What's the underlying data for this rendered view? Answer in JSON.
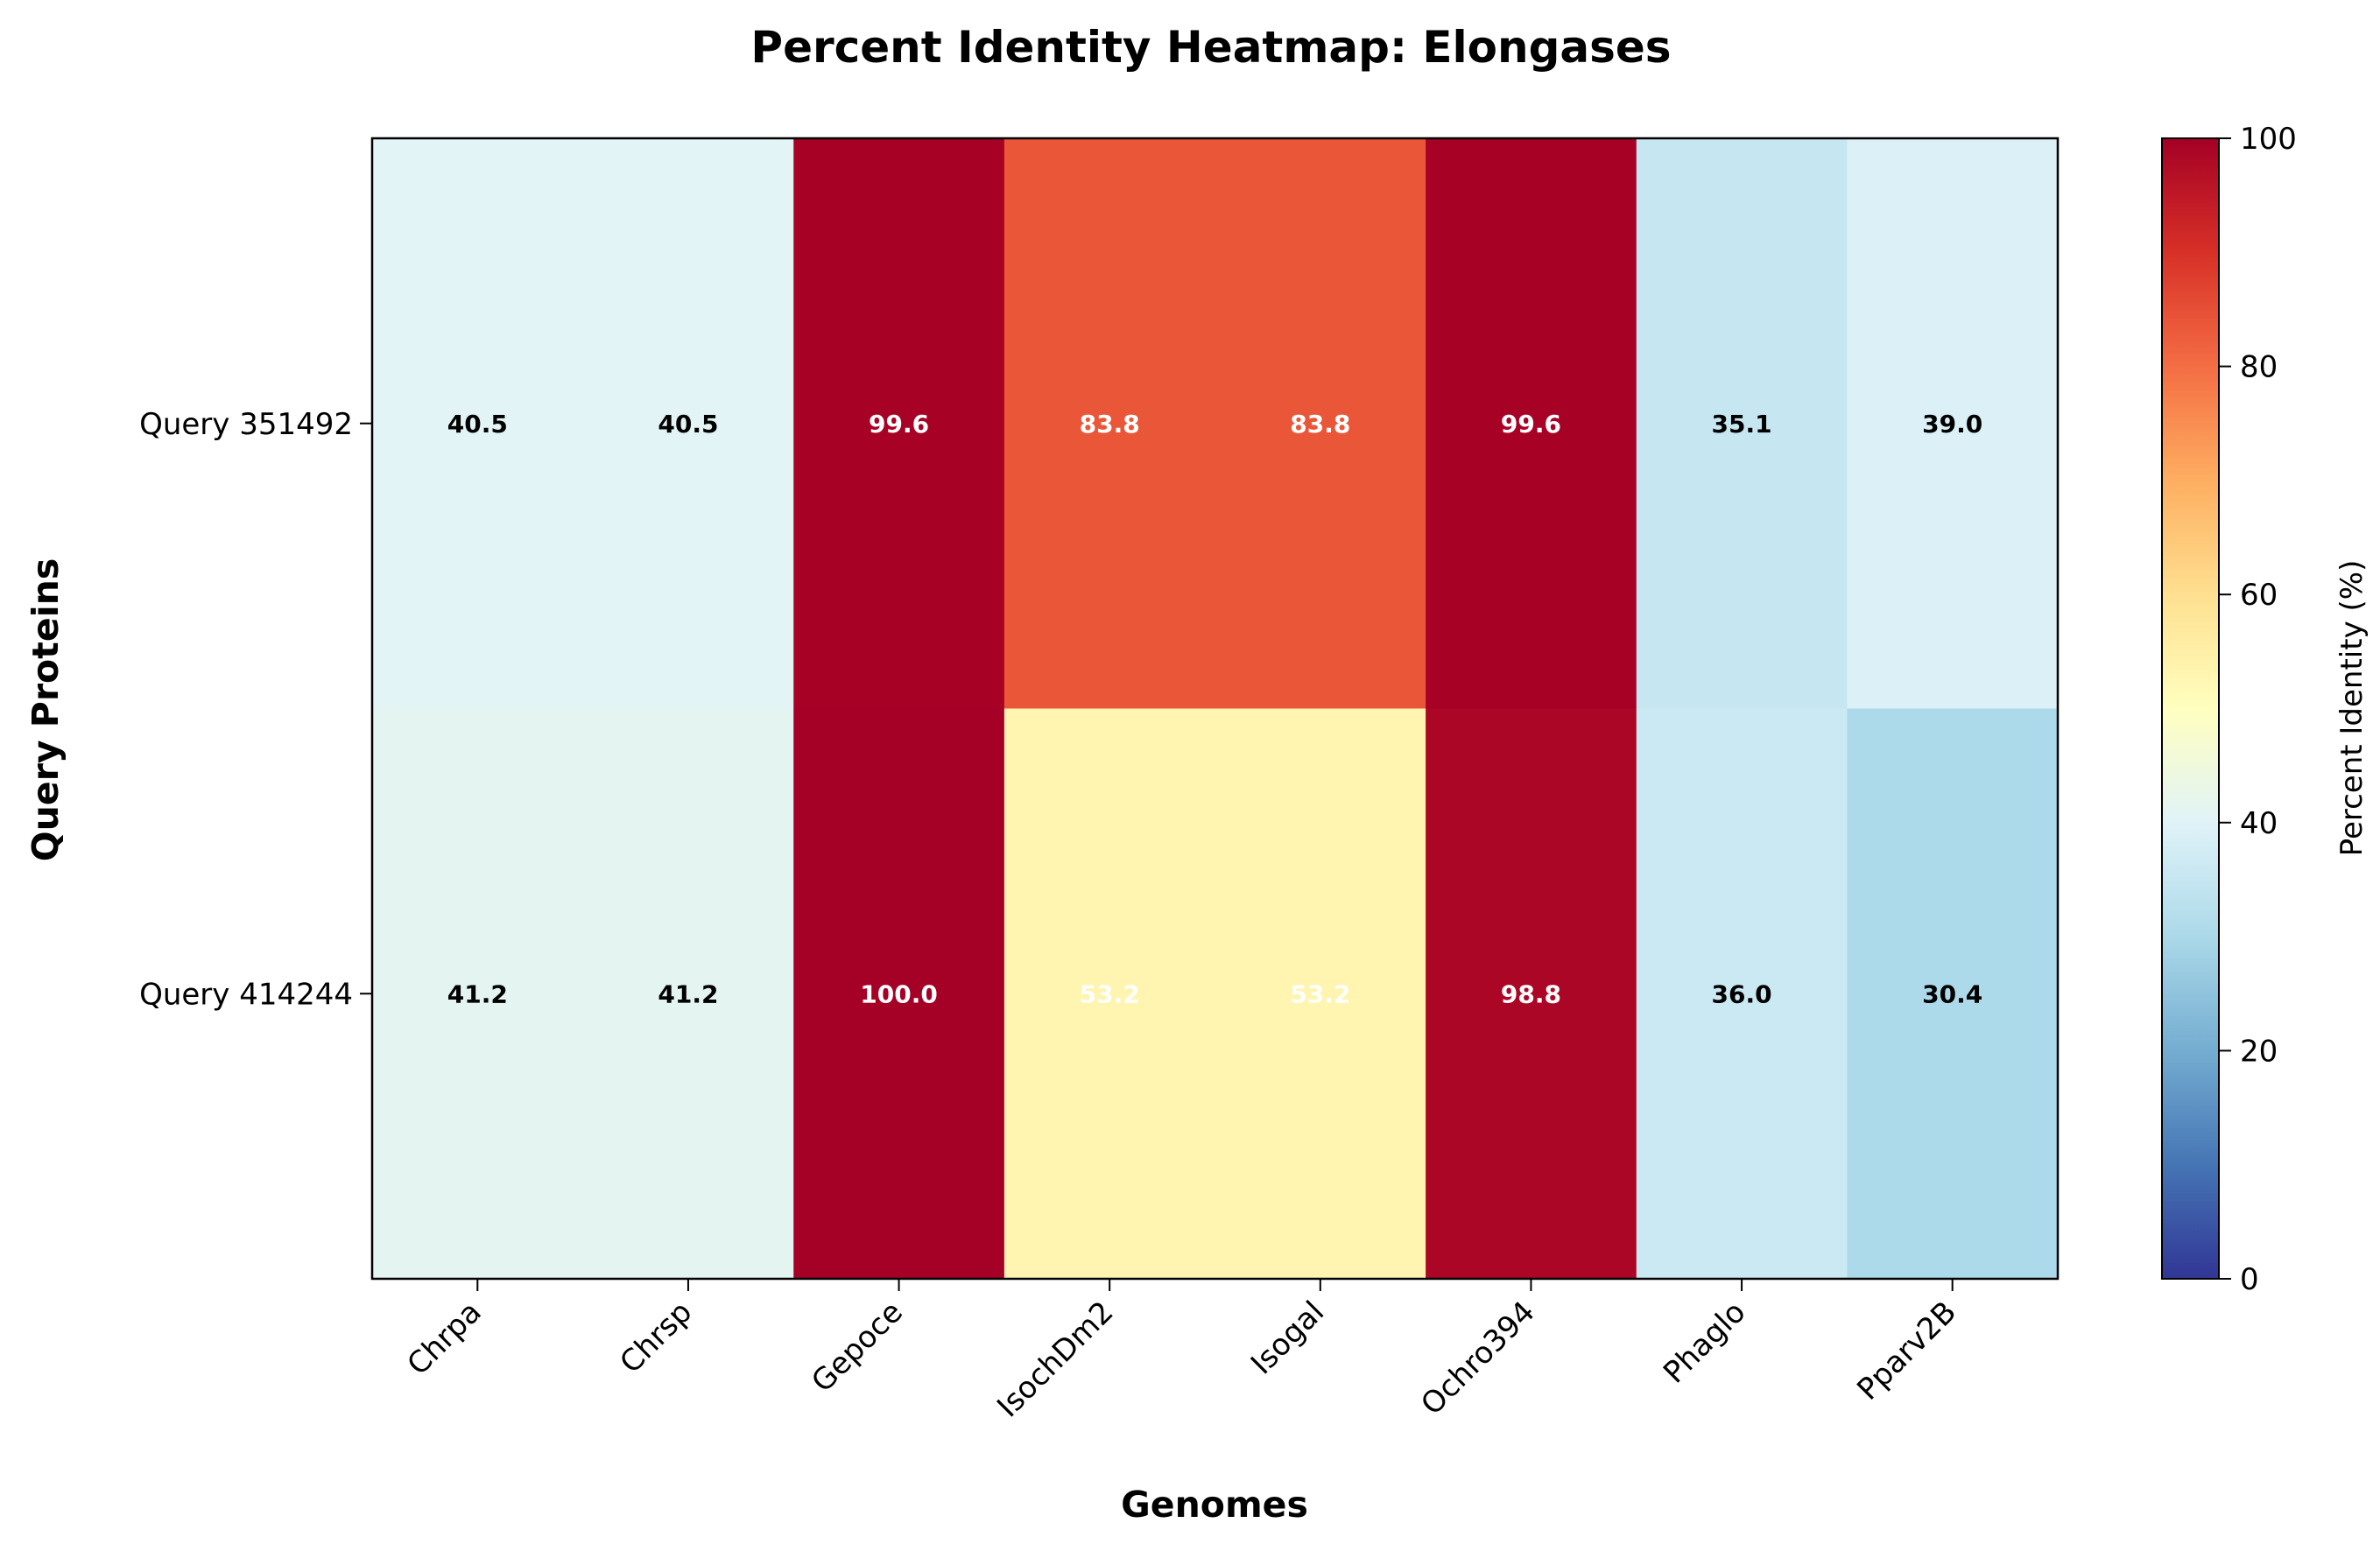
{
  "chart_data": {
    "type": "heatmap",
    "title": "Percent Identity Heatmap: Elongases",
    "xlabel": "Genomes",
    "ylabel": "Query Proteins",
    "columns": [
      "Chrpa",
      "Chrsp",
      "Gepoce",
      "IsochDm2",
      "Isogal",
      "Ochro394",
      "Phaglo",
      "Pparv2B"
    ],
    "rows": [
      "Query 351492",
      "Query 414244"
    ],
    "values": [
      [
        40.5,
        40.5,
        99.6,
        83.8,
        83.8,
        99.6,
        35.1,
        39.0
      ],
      [
        41.2,
        41.2,
        100.0,
        53.2,
        53.2,
        98.8,
        36.0,
        30.4
      ]
    ],
    "value_labels": [
      [
        "40.5",
        "40.5",
        "99.6",
        "83.8",
        "83.8",
        "99.6",
        "35.1",
        "39.0"
      ],
      [
        "41.2",
        "41.2",
        "100.0",
        "53.2",
        "53.2",
        "98.8",
        "36.0",
        "30.4"
      ]
    ],
    "colormap": "RdYlBu_r",
    "vmin": 0,
    "vmax": 100,
    "colorbar": {
      "label": "Percent Identity (%)",
      "ticks": [
        0,
        20,
        40,
        60,
        80,
        100
      ],
      "tick_labels": [
        "0",
        "20",
        "40",
        "60",
        "80",
        "100"
      ]
    },
    "label_colors": {
      "dark_text": "#000000",
      "light_text": "#ffffff"
    }
  }
}
